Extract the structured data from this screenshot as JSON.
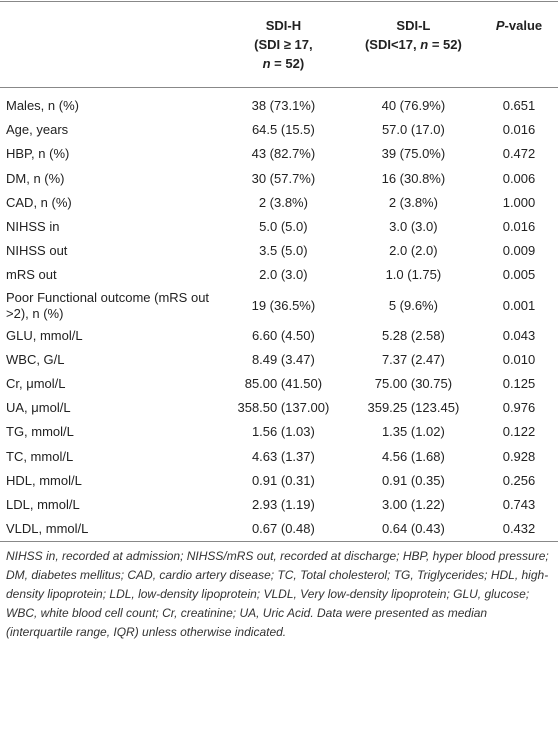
{
  "header": {
    "columns": [
      {
        "lines": [
          [
            "SDI-H"
          ],
          [
            "(SDI ≥ 17,"
          ],
          [
            "n",
            " = 52)"
          ]
        ]
      },
      {
        "lines": [
          [
            "SDI-L"
          ],
          [
            "(SDI<17, ",
            "n",
            " = 52)"
          ]
        ]
      },
      {
        "lines": [
          [
            "P",
            "-value"
          ]
        ]
      }
    ]
  },
  "table": {
    "rows": [
      [
        "Males, n (%)",
        "38 (73.1%)",
        "40 (76.9%)",
        "0.651"
      ],
      [
        "Age, years",
        "64.5 (15.5)",
        "57.0 (17.0)",
        "0.016"
      ],
      [
        "HBP, n (%)",
        "43 (82.7%)",
        "39 (75.0%)",
        "0.472"
      ],
      [
        "DM, n (%)",
        "30 (57.7%)",
        "16 (30.8%)",
        "0.006"
      ],
      [
        "CAD, n (%)",
        "2 (3.8%)",
        "2 (3.8%)",
        "1.000"
      ],
      [
        "NIHSS in",
        "5.0 (5.0)",
        "3.0 (3.0)",
        "0.016"
      ],
      [
        "NIHSS out",
        "3.5 (5.0)",
        "2.0 (2.0)",
        "0.009"
      ],
      [
        "mRS out",
        "2.0 (3.0)",
        "1.0 (1.75)",
        "0.005"
      ],
      [
        "Poor Functional outcome (mRS out >2), n (%)",
        "19 (36.5%)",
        "5 (9.6%)",
        "0.001"
      ],
      [
        "GLU, mmol/L",
        "6.60 (4.50)",
        "5.28 (2.58)",
        "0.043"
      ],
      [
        "WBC, G/L",
        "8.49 (3.47)",
        "7.37 (2.47)",
        "0.010"
      ],
      [
        "Cr, μmol/L",
        "85.00 (41.50)",
        "75.00 (30.75)",
        "0.125"
      ],
      [
        "UA, μmol/L",
        "358.50 (137.00)",
        "359.25 (123.45)",
        "0.976"
      ],
      [
        "TG, mmol/L",
        "1.56 (1.03)",
        "1.35 (1.02)",
        "0.122"
      ],
      [
        "TC, mmol/L",
        "4.63 (1.37)",
        "4.56 (1.68)",
        "0.928"
      ],
      [
        "HDL, mmol/L",
        "0.91 (0.31)",
        "0.91 (0.35)",
        "0.256"
      ],
      [
        "LDL, mmol/L",
        "2.93 (1.19)",
        "3.00 (1.22)",
        "0.743"
      ],
      [
        "VLDL, mmol/L",
        "0.67 (0.48)",
        "0.64 (0.43)",
        "0.432"
      ]
    ]
  },
  "footnote": "NIHSS in, recorded at admission; NIHSS/mRS out, recorded at discharge; HBP, hyper blood pressure; DM, diabetes mellitus; CAD, cardio artery disease; TC, Total cholesterol; TG, Triglycerides; HDL, high-density lipoprotein; LDL, low-density lipoprotein; VLDL, Very low-density lipoprotein; GLU, glucose; WBC, white blood cell count; Cr, creatinine; UA, Uric Acid. Data were presented as median (interquartile range, IQR) unless otherwise indicated."
}
